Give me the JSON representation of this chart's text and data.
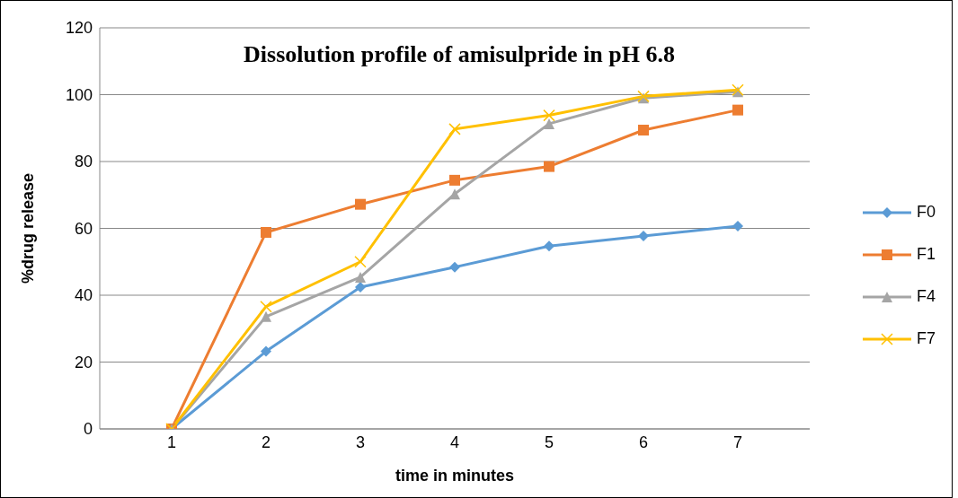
{
  "chart_data": {
    "type": "line",
    "title": "Dissolution profile of amisulpride in pH 6.8",
    "xlabel": "time in minutes",
    "ylabel": "%drug release",
    "categories": [
      "1",
      "2",
      "3",
      "4",
      "5",
      "6",
      "7"
    ],
    "series": [
      {
        "name": "F0",
        "color": "#5b9bd5",
        "marker": "diamond",
        "values": [
          0,
          23.2,
          42.4,
          48.4,
          54.7,
          57.7,
          60.7
        ]
      },
      {
        "name": "F1",
        "color": "#ed7d31",
        "marker": "square",
        "values": [
          0,
          58.8,
          67.2,
          74.4,
          78.5,
          89.4,
          95.4
        ]
      },
      {
        "name": "F4",
        "color": "#a5a5a5",
        "marker": "triangle",
        "values": [
          0,
          33.6,
          45.4,
          70.3,
          91.3,
          99,
          100.9
        ]
      },
      {
        "name": "F7",
        "color": "#ffc000",
        "marker": "cross",
        "values": [
          0,
          36.6,
          50,
          89.7,
          93.8,
          99.5,
          101.4
        ]
      }
    ],
    "ylim": [
      0,
      120
    ],
    "yticks": [
      0,
      20,
      40,
      60,
      80,
      100,
      120
    ],
    "grid": "y",
    "legend": "right",
    "line_style": "solid"
  }
}
